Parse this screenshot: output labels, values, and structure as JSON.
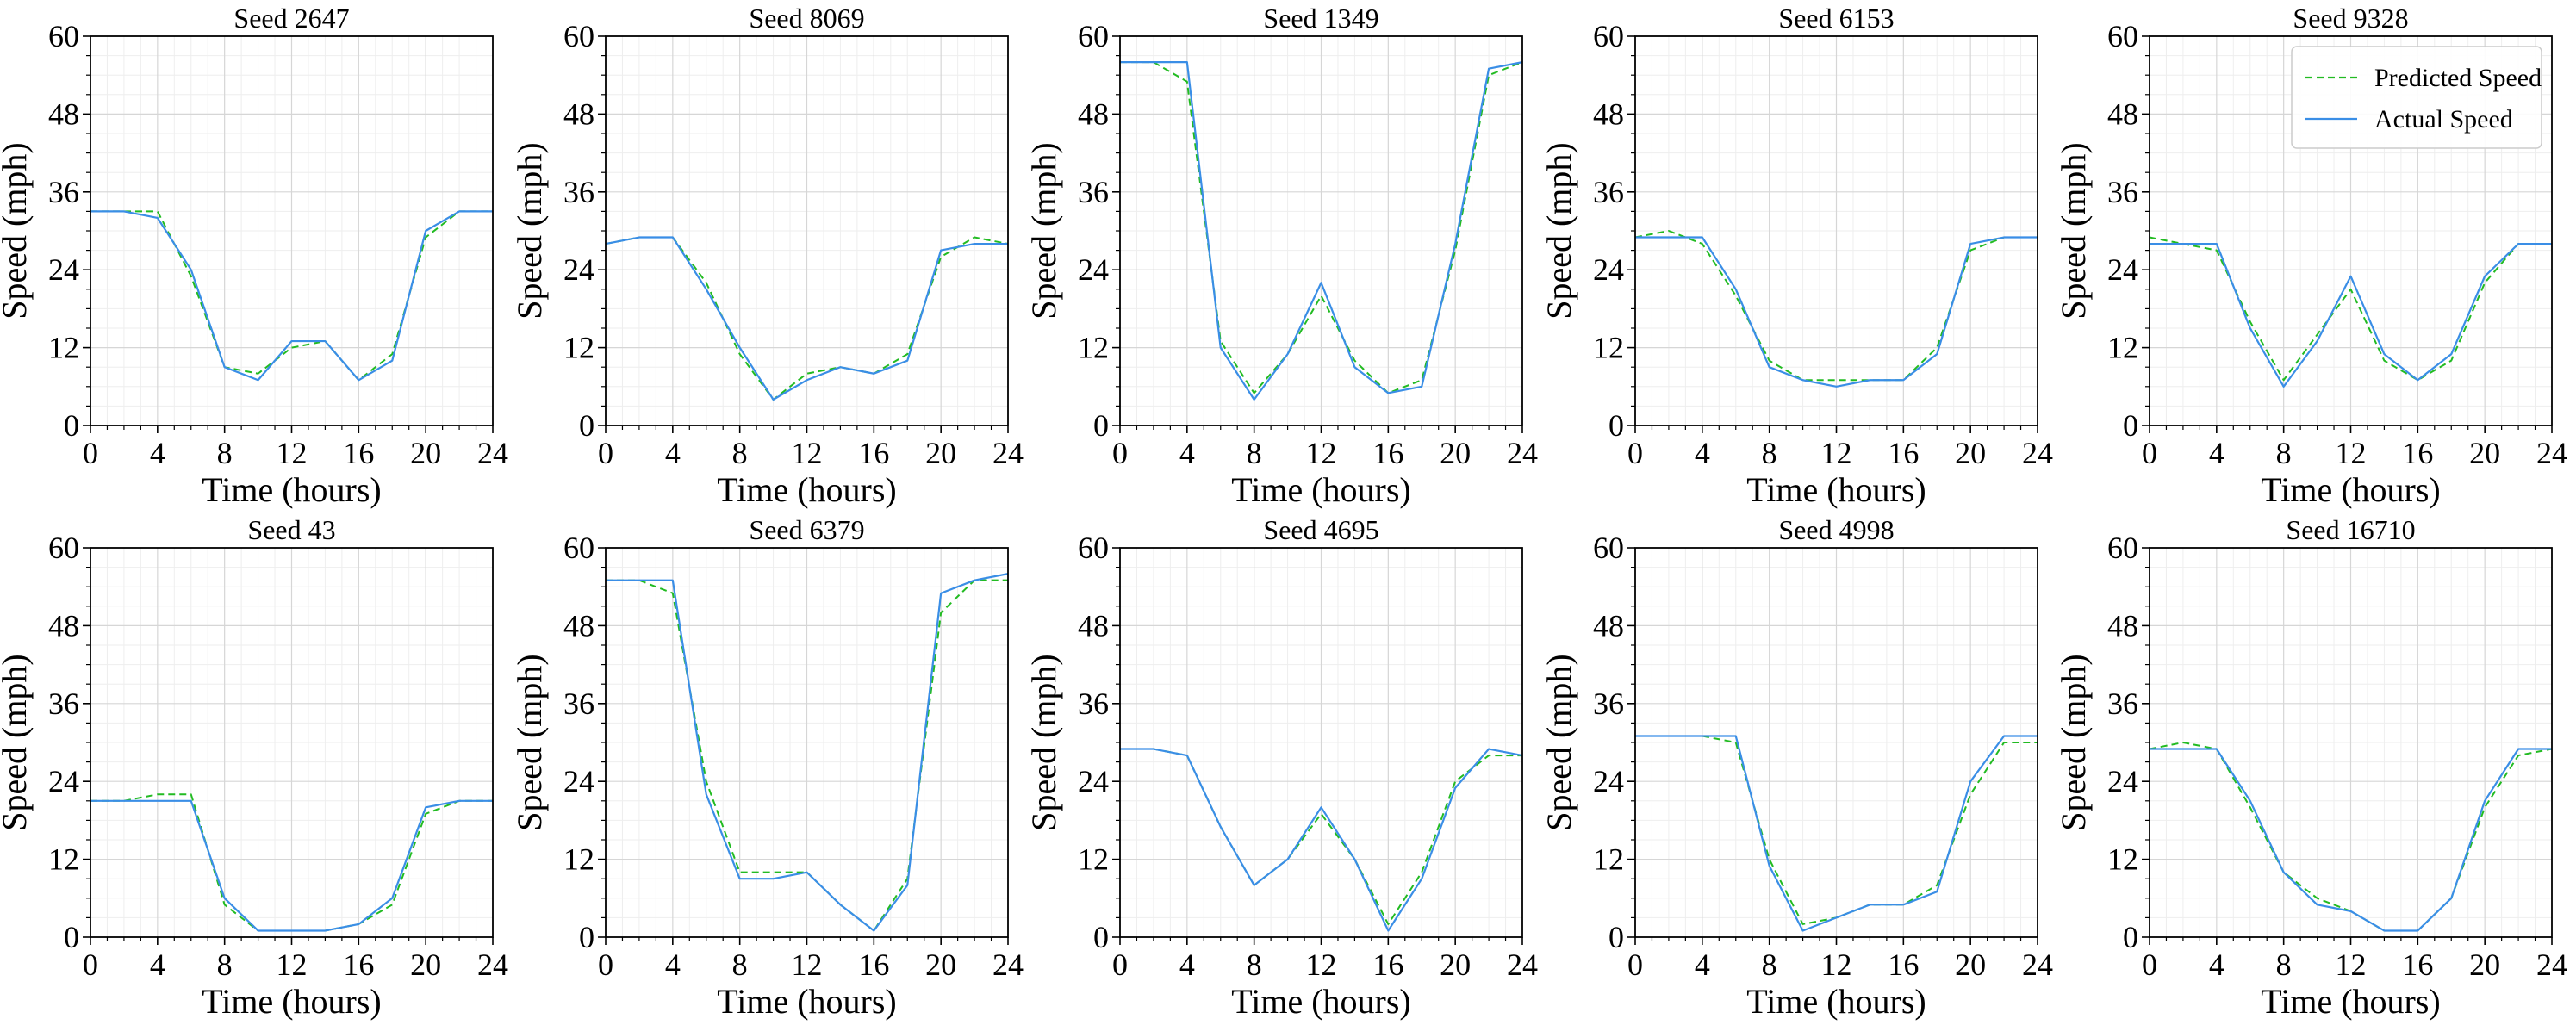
{
  "chart_data": {
    "type": "line",
    "layout_grid": "2x5",
    "xlabel": "Time (hours)",
    "ylabel": "Speed (mph)",
    "xlim": [
      0,
      24
    ],
    "ylim": [
      0,
      60
    ],
    "x_ticks": [
      0,
      4,
      8,
      12,
      16,
      20,
      24
    ],
    "x_tick_labels": [
      "0",
      "4",
      "8",
      "12",
      "16",
      "20",
      "24"
    ],
    "y_ticks": [
      0,
      12,
      24,
      36,
      48,
      60
    ],
    "y_tick_labels": [
      "0",
      "12",
      "24",
      "36",
      "48",
      "60"
    ],
    "grid": true,
    "legend": {
      "placement": "top-right",
      "panel_index": 4,
      "entries": [
        "Predicted Speed",
        "Actual Speed"
      ]
    },
    "colors": {
      "predicted": "#22bb22",
      "actual": "#3a8ee6"
    },
    "x": [
      0,
      2,
      4,
      6,
      8,
      10,
      12,
      14,
      16,
      18,
      20,
      22,
      24
    ],
    "panels": [
      {
        "title": "Seed 2647",
        "series": [
          {
            "name": "Predicted Speed",
            "values": [
              33,
              33,
              33,
              23,
              9,
              8,
              12,
              13,
              7,
              11,
              29,
              33,
              33
            ]
          },
          {
            "name": "Actual Speed",
            "values": [
              33,
              33,
              32,
              24,
              9,
              7,
              13,
              13,
              7,
              10,
              30,
              33,
              33
            ]
          }
        ]
      },
      {
        "title": "Seed 8069",
        "series": [
          {
            "name": "Predicted Speed",
            "values": [
              28,
              29,
              29,
              22,
              11,
              4,
              8,
              9,
              8,
              11,
              26,
              29,
              28
            ]
          },
          {
            "name": "Actual Speed",
            "values": [
              28,
              29,
              29,
              21,
              12,
              4,
              7,
              9,
              8,
              10,
              27,
              28,
              28
            ]
          }
        ]
      },
      {
        "title": "Seed 1349",
        "series": [
          {
            "name": "Predicted Speed",
            "values": [
              56,
              56,
              53,
              13,
              5,
              11,
              20,
              10,
              5,
              7,
              27,
              54,
              56
            ]
          },
          {
            "name": "Actual Speed",
            "values": [
              56,
              56,
              56,
              12,
              4,
              11,
              22,
              9,
              5,
              6,
              28,
              55,
              56
            ]
          }
        ]
      },
      {
        "title": "Seed 6153",
        "series": [
          {
            "name": "Predicted Speed",
            "values": [
              29,
              30,
              28,
              20,
              10,
              7,
              7,
              7,
              7,
              12,
              27,
              29,
              29
            ]
          },
          {
            "name": "Actual Speed",
            "values": [
              29,
              29,
              29,
              21,
              9,
              7,
              6,
              7,
              7,
              11,
              28,
              29,
              29
            ]
          }
        ]
      },
      {
        "title": "Seed 9328",
        "series": [
          {
            "name": "Predicted Speed",
            "values": [
              29,
              28,
              27,
              16,
              7,
              14,
              21,
              10,
              7,
              10,
              22,
              28,
              28
            ]
          },
          {
            "name": "Actual Speed",
            "values": [
              28,
              28,
              28,
              15,
              6,
              13,
              23,
              11,
              7,
              11,
              23,
              28,
              28
            ]
          }
        ]
      },
      {
        "title": "Seed 43",
        "series": [
          {
            "name": "Predicted Speed",
            "values": [
              21,
              21,
              22,
              22,
              5,
              1,
              1,
              1,
              2,
              5,
              19,
              21,
              21
            ]
          },
          {
            "name": "Actual Speed",
            "values": [
              21,
              21,
              21,
              21,
              6,
              1,
              1,
              1,
              2,
              6,
              20,
              21,
              21
            ]
          }
        ]
      },
      {
        "title": "Seed 6379",
        "series": [
          {
            "name": "Predicted Speed",
            "values": [
              55,
              55,
              53,
              24,
              10,
              10,
              10,
              5,
              1,
              9,
              50,
              55,
              55
            ]
          },
          {
            "name": "Actual Speed",
            "values": [
              55,
              55,
              55,
              22,
              9,
              9,
              10,
              5,
              1,
              8,
              53,
              55,
              56
            ]
          }
        ]
      },
      {
        "title": "Seed 4695",
        "series": [
          {
            "name": "Predicted Speed",
            "values": [
              29,
              29,
              28,
              17,
              8,
              12,
              19,
              12,
              2,
              10,
              24,
              28,
              28
            ]
          },
          {
            "name": "Actual Speed",
            "values": [
              29,
              29,
              28,
              17,
              8,
              12,
              20,
              12,
              1,
              9,
              23,
              29,
              28
            ]
          }
        ]
      },
      {
        "title": "Seed 4998",
        "series": [
          {
            "name": "Predicted Speed",
            "values": [
              31,
              31,
              31,
              30,
              12,
              2,
              3,
              5,
              5,
              8,
              22,
              30,
              30
            ]
          },
          {
            "name": "Actual Speed",
            "values": [
              31,
              31,
              31,
              31,
              11,
              1,
              3,
              5,
              5,
              7,
              24,
              31,
              31
            ]
          }
        ]
      },
      {
        "title": "Seed 16710",
        "series": [
          {
            "name": "Predicted Speed",
            "values": [
              29,
              30,
              29,
              20,
              10,
              6,
              4,
              1,
              1,
              6,
              20,
              28,
              29
            ]
          },
          {
            "name": "Actual Speed",
            "values": [
              29,
              29,
              29,
              21,
              10,
              5,
              4,
              1,
              1,
              6,
              21,
              29,
              29
            ]
          }
        ]
      }
    ]
  }
}
